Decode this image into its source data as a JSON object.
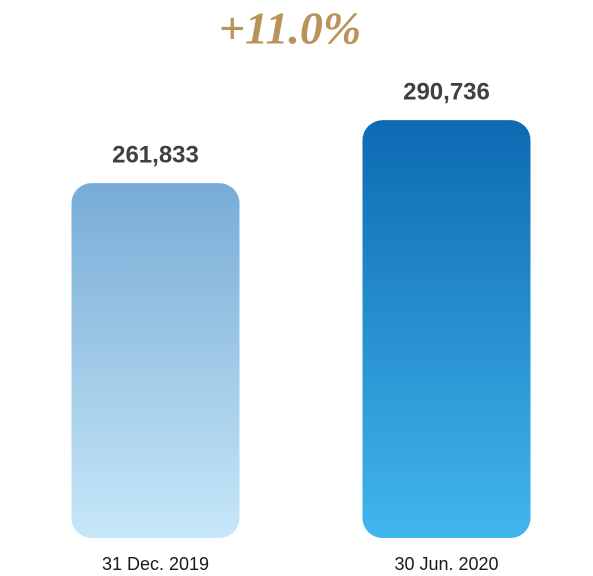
{
  "chart_data": {
    "type": "bar",
    "annotation": "+11.0%",
    "categories": [
      "31 Dec. 2019",
      "30 Jun. 2020"
    ],
    "values": [
      261833,
      290736
    ],
    "value_labels": [
      "261,833",
      "290,736"
    ],
    "gradients": [
      [
        "#78acd6",
        "#c6e7f8"
      ],
      [
        "#0d6ab2",
        "#41b6ec"
      ]
    ],
    "annotation_color": "#b8935a",
    "ylim": [
      99000,
      300000
    ]
  }
}
